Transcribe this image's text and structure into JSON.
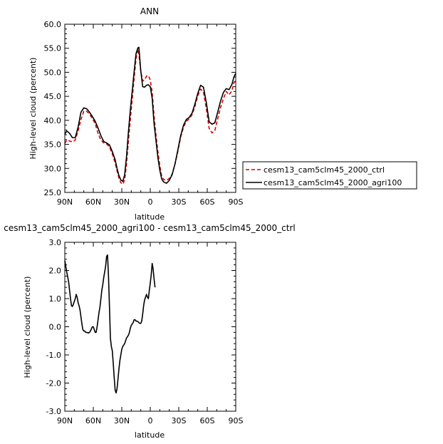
{
  "chart_data": [
    {
      "type": "line",
      "title": "ANN",
      "xlabel": "latitude",
      "ylabel": "High-level cloud (percent)",
      "xlim": [
        90,
        -90
      ],
      "ylim": [
        25,
        60
      ],
      "x_ticks": [
        {
          "value": 90,
          "label": "90N"
        },
        {
          "value": 60,
          "label": "60N"
        },
        {
          "value": 30,
          "label": "30N"
        },
        {
          "value": 0,
          "label": "0"
        },
        {
          "value": -30,
          "label": "30S"
        },
        {
          "value": -60,
          "label": "60S"
        },
        {
          "value": -90,
          "label": "90S"
        }
      ],
      "y_ticks": [
        "25.0",
        "30.0",
        "35.0",
        "40.0",
        "45.0",
        "50.0",
        "55.0",
        "60.0"
      ],
      "legend_position": "right",
      "series": [
        {
          "name": "cesm13_cam5clm45_2000_ctrl",
          "color": "#d40000",
          "dash": "dashed",
          "points": [
            [
              90,
              35.2
            ],
            [
              88,
              35.9
            ],
            [
              85,
              35.7
            ],
            [
              82,
              35.5
            ],
            [
              79,
              35.9
            ],
            [
              76,
              37.8
            ],
            [
              73,
              40.2
            ],
            [
              70,
              41.9
            ],
            [
              67,
              41.9
            ],
            [
              64,
              41.3
            ],
            [
              61,
              40.4
            ],
            [
              58,
              39.3
            ],
            [
              55,
              37.3
            ],
            [
              52,
              35.9
            ],
            [
              49,
              35.3
            ],
            [
              46,
              35.1
            ],
            [
              43,
              34.5
            ],
            [
              40,
              33.0
            ],
            [
              37,
              31.2
            ],
            [
              35,
              29.5
            ],
            [
              33,
              28.0
            ],
            [
              31,
              27.0
            ],
            [
              29,
              26.7
            ],
            [
              27,
              27.6
            ],
            [
              25,
              31.0
            ],
            [
              23,
              35.7
            ],
            [
              21,
              40.2
            ],
            [
              19,
              44.4
            ],
            [
              17,
              48.8
            ],
            [
              15,
              52.9
            ],
            [
              13,
              54.8
            ],
            [
              12,
              53.8
            ],
            [
              10,
              50.2
            ],
            [
              8,
              48.2
            ],
            [
              6,
              48.4
            ],
            [
              4,
              49.2
            ],
            [
              2,
              49.3
            ],
            [
              0,
              48.4
            ],
            [
              -2,
              45.8
            ],
            [
              -4,
              40.8
            ],
            [
              -6,
              36.9
            ],
            [
              -8,
              33.5
            ],
            [
              -10,
              30.6
            ],
            [
              -12,
              28.4
            ],
            [
              -14,
              27.7
            ],
            [
              -17,
              27.5
            ],
            [
              -20,
              27.9
            ],
            [
              -23,
              28.8
            ],
            [
              -26,
              30.9
            ],
            [
              -29,
              33.5
            ],
            [
              -32,
              36.5
            ],
            [
              -35,
              38.6
            ],
            [
              -38,
              39.8
            ],
            [
              -41,
              40.3
            ],
            [
              -44,
              41.2
            ],
            [
              -47,
              42.9
            ],
            [
              -50,
              45.1
            ],
            [
              -53,
              46.5
            ],
            [
              -56,
              45.9
            ],
            [
              -59,
              42.5
            ],
            [
              -62,
              38.3
            ],
            [
              -65,
              37.4
            ],
            [
              -68,
              37.9
            ],
            [
              -71,
              40.3
            ],
            [
              -74,
              42.7
            ],
            [
              -77,
              44.5
            ],
            [
              -80,
              46.0
            ],
            [
              -83,
              45.3
            ],
            [
              -86,
              46.2
            ],
            [
              -88,
              47.8
            ],
            [
              -90,
              48.3
            ]
          ]
        },
        {
          "name": "cesm13_cam5clm45_2000_agri100",
          "color": "#000000",
          "dash": "solid",
          "points": [
            [
              90,
              37.1
            ],
            [
              88,
              37.8
            ],
            [
              85,
              37.3
            ],
            [
              82,
              36.4
            ],
            [
              79,
              36.4
            ],
            [
              76,
              38.6
            ],
            [
              73,
              41.7
            ],
            [
              70,
              42.6
            ],
            [
              67,
              42.4
            ],
            [
              64,
              41.7
            ],
            [
              61,
              40.8
            ],
            [
              58,
              39.8
            ],
            [
              55,
              38.4
            ],
            [
              52,
              36.8
            ],
            [
              49,
              35.6
            ],
            [
              46,
              35.3
            ],
            [
              43,
              34.9
            ],
            [
              40,
              33.5
            ],
            [
              37,
              31.8
            ],
            [
              35,
              30.0
            ],
            [
              33,
              28.5
            ],
            [
              31,
              27.6
            ],
            [
              29,
              27.3
            ],
            [
              27,
              28.6
            ],
            [
              25,
              32.5
            ],
            [
              23,
              37.6
            ],
            [
              21,
              42.2
            ],
            [
              19,
              46.1
            ],
            [
              17,
              50.1
            ],
            [
              15,
              53.9
            ],
            [
              13,
              55.1
            ],
            [
              12,
              55.2
            ],
            [
              10,
              50.3
            ],
            [
              8,
              47.0
            ],
            [
              6,
              46.9
            ],
            [
              4,
              47.3
            ],
            [
              2,
              47.4
            ],
            [
              0,
              47.0
            ],
            [
              -2,
              44.6
            ],
            [
              -4,
              39.3
            ],
            [
              -6,
              35.8
            ],
            [
              -8,
              32.3
            ],
            [
              -10,
              29.7
            ],
            [
              -12,
              27.8
            ],
            [
              -14,
              27.2
            ],
            [
              -17,
              26.9
            ],
            [
              -20,
              27.5
            ],
            [
              -23,
              28.7
            ],
            [
              -26,
              30.9
            ],
            [
              -29,
              33.8
            ],
            [
              -32,
              36.8
            ],
            [
              -35,
              39.0
            ],
            [
              -38,
              40.2
            ],
            [
              -41,
              40.6
            ],
            [
              -44,
              41.5
            ],
            [
              -47,
              43.4
            ],
            [
              -50,
              45.6
            ],
            [
              -53,
              47.3
            ],
            [
              -56,
              46.9
            ],
            [
              -59,
              43.7
            ],
            [
              -62,
              39.7
            ],
            [
              -65,
              39.2
            ],
            [
              -68,
              39.5
            ],
            [
              -71,
              41.7
            ],
            [
              -74,
              44.0
            ],
            [
              -77,
              45.8
            ],
            [
              -80,
              46.6
            ],
            [
              -83,
              46.4
            ],
            [
              -86,
              47.5
            ],
            [
              -88,
              49.0
            ],
            [
              -90,
              49.8
            ]
          ]
        }
      ]
    },
    {
      "type": "line",
      "title": "cesm13_cam5clm45_2000_agri100 - cesm13_cam5clm45_2000_ctrl",
      "xlabel": "latitude",
      "ylabel": "High-level cloud (percent)",
      "xlim": [
        90,
        -90
      ],
      "ylim": [
        -3,
        3
      ],
      "x_ticks": [
        {
          "value": 90,
          "label": "90N"
        },
        {
          "value": 60,
          "label": "60N"
        },
        {
          "value": 30,
          "label": "30N"
        },
        {
          "value": 0,
          "label": "0"
        },
        {
          "value": -30,
          "label": "30S"
        },
        {
          "value": -60,
          "label": "60S"
        },
        {
          "value": -90,
          "label": "90S"
        }
      ],
      "y_ticks": [
        "-3.0",
        "-2.0",
        "-1.0",
        "0.0",
        "1.0",
        "2.0",
        "3.0"
      ],
      "series": [
        {
          "color": "#000000",
          "dash": "solid",
          "points": [
            [
              90,
              2.35
            ],
            [
              88,
              1.95
            ],
            [
              86,
              1.6
            ],
            [
              85,
              1.3
            ],
            [
              84,
              1.0
            ],
            [
              83,
              0.75
            ],
            [
              82,
              0.72
            ],
            [
              81,
              0.8
            ],
            [
              80,
              0.9
            ],
            [
              79,
              1.0
            ],
            [
              78,
              1.15
            ],
            [
              77,
              1.05
            ],
            [
              76,
              0.85
            ],
            [
              75,
              0.75
            ],
            [
              74,
              0.6
            ],
            [
              73,
              0.35
            ],
            [
              72,
              0.1
            ],
            [
              71,
              -0.1
            ],
            [
              70,
              -0.15
            ],
            [
              69,
              -0.15
            ],
            [
              68,
              -0.2
            ],
            [
              67,
              -0.2
            ],
            [
              65,
              -0.22
            ],
            [
              64,
              -0.2
            ],
            [
              63,
              -0.15
            ],
            [
              61,
              0.0
            ],
            [
              60,
              0.0
            ],
            [
              59,
              -0.1
            ],
            [
              58,
              -0.2
            ],
            [
              57,
              -0.2
            ],
            [
              56,
              0.0
            ],
            [
              55,
              0.25
            ],
            [
              54,
              0.5
            ],
            [
              53,
              0.7
            ],
            [
              52,
              1.0
            ],
            [
              51,
              1.3
            ],
            [
              50,
              1.5
            ],
            [
              49,
              1.75
            ],
            [
              48,
              1.95
            ],
            [
              47,
              2.15
            ],
            [
              46,
              2.5
            ],
            [
              45,
              2.55
            ],
            [
              44,
              1.8
            ],
            [
              43,
              0.75
            ],
            [
              42,
              -0.4
            ],
            [
              41,
              -0.7
            ],
            [
              40,
              -0.85
            ],
            [
              39,
              -1.3
            ],
            [
              38,
              -1.8
            ],
            [
              37,
              -2.25
            ],
            [
              36,
              -2.35
            ],
            [
              35,
              -2.2
            ],
            [
              34,
              -1.85
            ],
            [
              33,
              -1.5
            ],
            [
              32,
              -1.2
            ],
            [
              31,
              -1.0
            ],
            [
              30,
              -0.8
            ],
            [
              29,
              -0.7
            ],
            [
              28,
              -0.65
            ],
            [
              27,
              -0.6
            ],
            [
              26,
              -0.5
            ],
            [
              25,
              -0.4
            ],
            [
              24,
              -0.35
            ],
            [
              23,
              -0.3
            ],
            [
              22,
              -0.2
            ],
            [
              21,
              -0.05
            ],
            [
              20,
              0.05
            ],
            [
              19,
              0.1
            ],
            [
              18,
              0.15
            ],
            [
              17,
              0.25
            ],
            [
              16,
              0.25
            ],
            [
              15,
              0.2
            ],
            [
              14,
              0.2
            ],
            [
              13,
              0.18
            ],
            [
              12,
              0.15
            ],
            [
              11,
              0.12
            ],
            [
              10,
              0.12
            ],
            [
              9,
              0.2
            ],
            [
              8,
              0.45
            ],
            [
              7,
              0.75
            ],
            [
              6,
              0.95
            ],
            [
              5,
              1.05
            ],
            [
              4,
              1.15
            ],
            [
              3,
              1.05
            ],
            [
              2,
              1.0
            ],
            [
              1,
              1.3
            ],
            [
              0,
              1.55
            ],
            [
              -1,
              1.85
            ],
            [
              -2,
              2.25
            ],
            [
              -3,
              2.05
            ],
            [
              -4,
              1.7
            ],
            [
              -5,
              1.4
            ]
          ]
        }
      ]
    }
  ]
}
